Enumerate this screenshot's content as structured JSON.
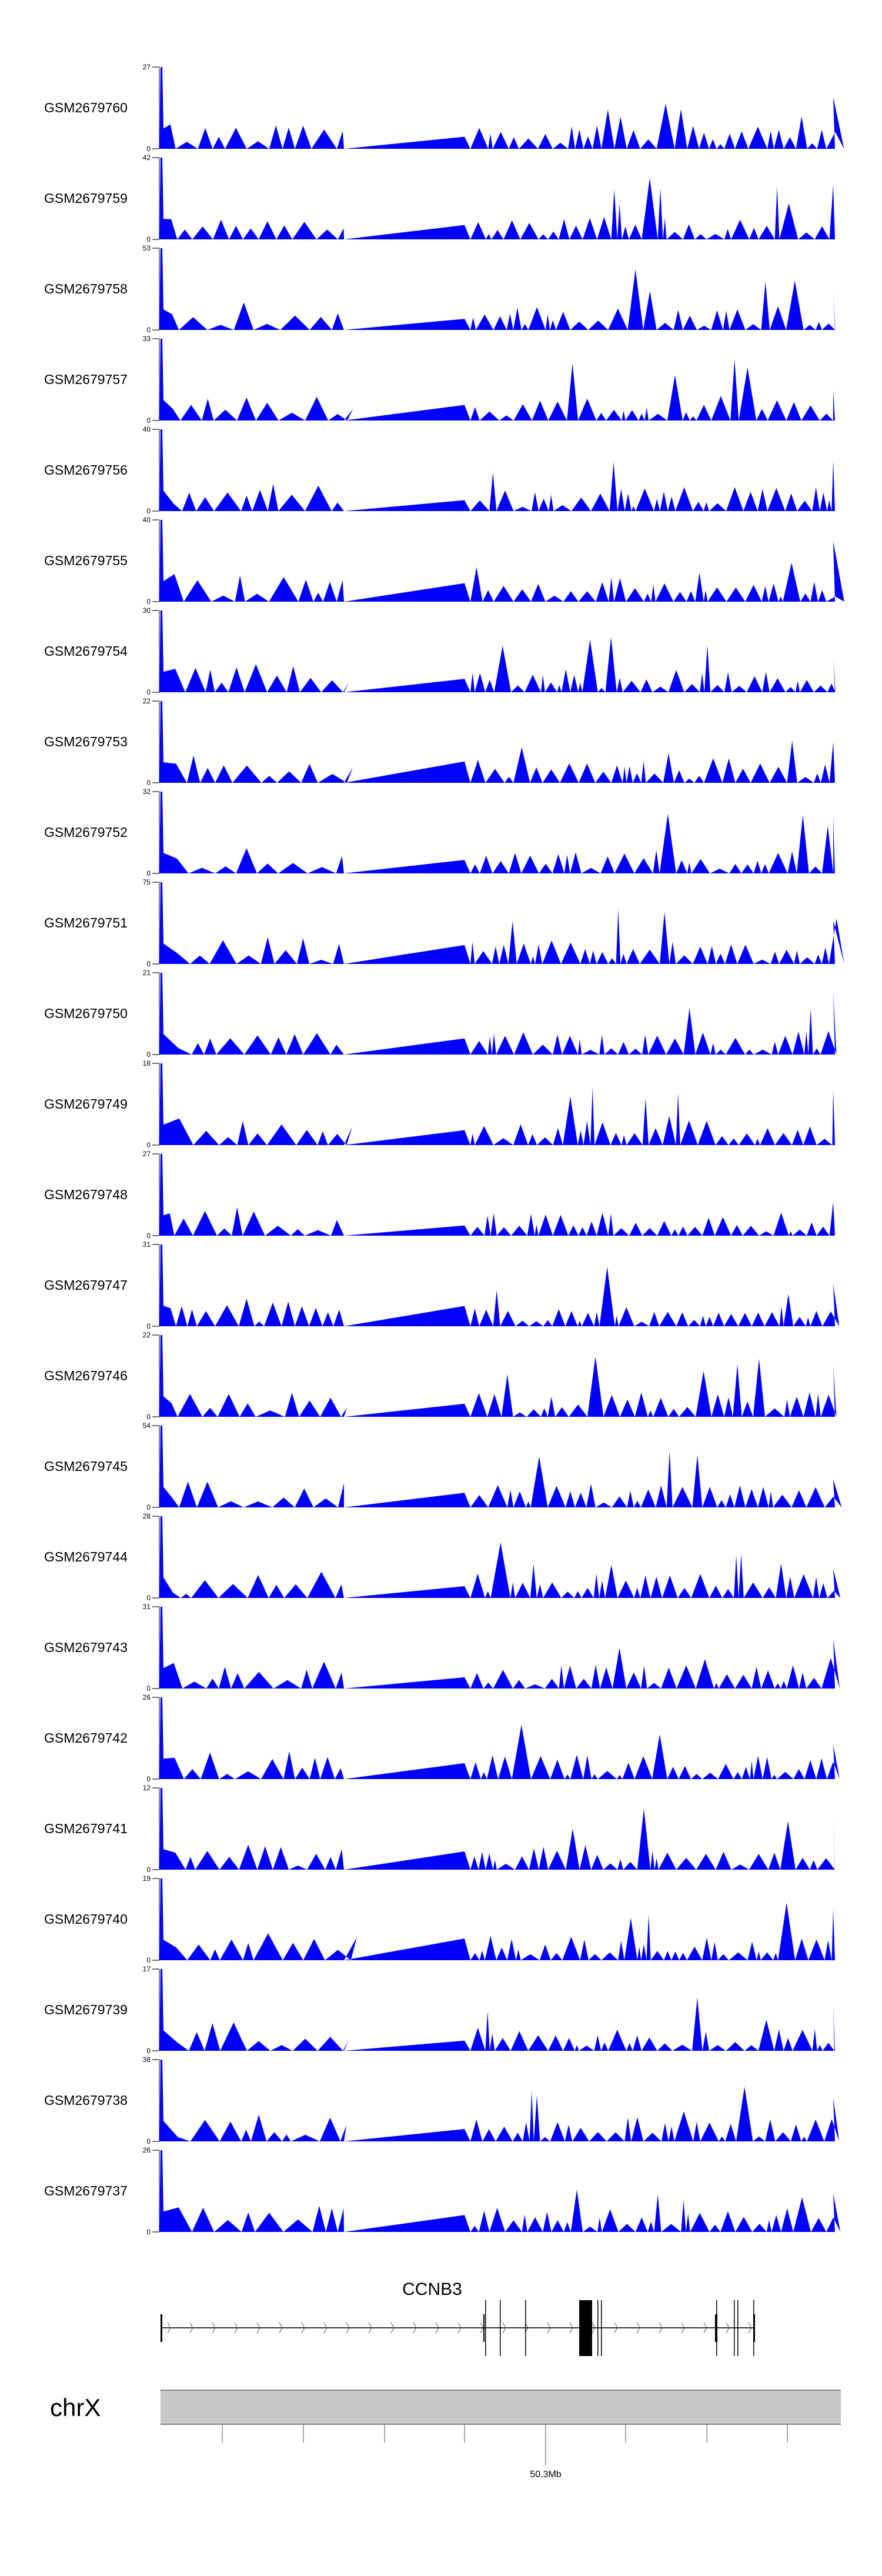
{
  "chart_data": {
    "type": "area",
    "title": "",
    "fill_color": "#0000ff",
    "tracks": [
      {
        "name": "GSM2679760",
        "ymax": 27
      },
      {
        "name": "GSM2679759",
        "ymax": 42
      },
      {
        "name": "GSM2679758",
        "ymax": 53
      },
      {
        "name": "GSM2679757",
        "ymax": 33
      },
      {
        "name": "GSM2679756",
        "ymax": 40
      },
      {
        "name": "GSM2679755",
        "ymax": 40
      },
      {
        "name": "GSM2679754",
        "ymax": 30
      },
      {
        "name": "GSM2679753",
        "ymax": 22
      },
      {
        "name": "GSM2679752",
        "ymax": 32
      },
      {
        "name": "GSM2679751",
        "ymax": 75
      },
      {
        "name": "GSM2679750",
        "ymax": 21
      },
      {
        "name": "GSM2679749",
        "ymax": 18
      },
      {
        "name": "GSM2679748",
        "ymax": 27
      },
      {
        "name": "GSM2679747",
        "ymax": 31
      },
      {
        "name": "GSM2679746",
        "ymax": 22
      },
      {
        "name": "GSM2679745",
        "ymax": 54
      },
      {
        "name": "GSM2679744",
        "ymax": 28
      },
      {
        "name": "GSM2679743",
        "ymax": 31
      },
      {
        "name": "GSM2679742",
        "ymax": 26
      },
      {
        "name": "GSM2679741",
        "ymax": 12
      },
      {
        "name": "GSM2679740",
        "ymax": 19
      },
      {
        "name": "GSM2679739",
        "ymax": 17
      },
      {
        "name": "GSM2679738",
        "ymax": 38
      },
      {
        "name": "GSM2679737",
        "ymax": 26
      }
    ],
    "ymin_label": "0",
    "gene": {
      "name": "CCNB3",
      "strand": "+"
    },
    "ideogram": {
      "chromosome": "chrX",
      "tick_label": "50.3Mb"
    }
  }
}
